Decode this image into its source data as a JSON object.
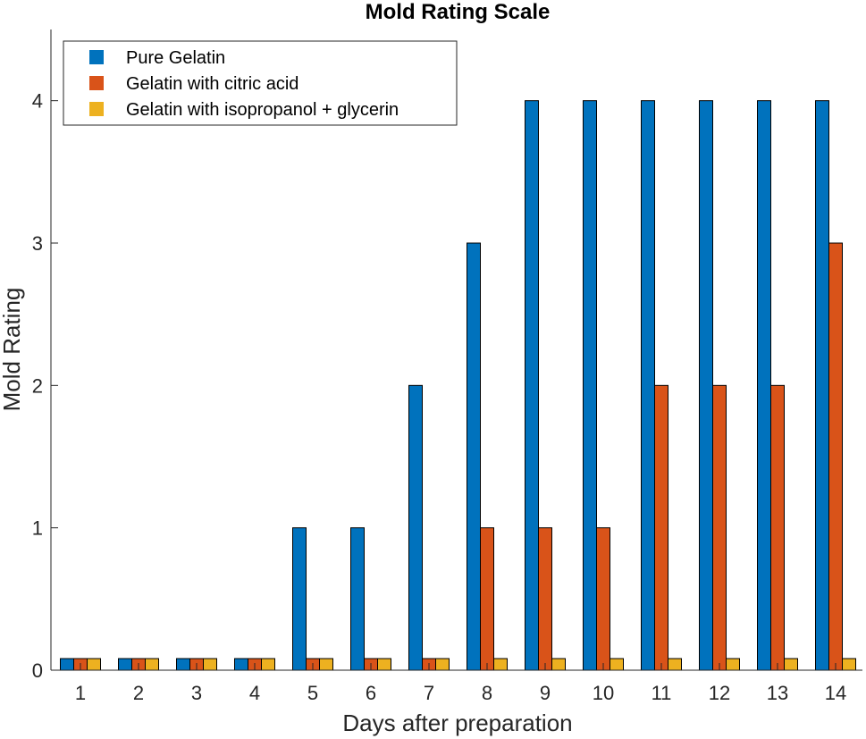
{
  "chart_data": {
    "type": "bar",
    "title": "Mold Rating Scale",
    "xlabel": "Days after preparation",
    "ylabel": "Mold Rating",
    "categories": [
      "1",
      "2",
      "3",
      "4",
      "5",
      "6",
      "7",
      "8",
      "9",
      "10",
      "11",
      "12",
      "13",
      "14"
    ],
    "ylim": [
      0,
      4.5
    ],
    "yticks": [
      0,
      1,
      2,
      3,
      4
    ],
    "grid": false,
    "legend_position": "top-left",
    "series": [
      {
        "name": "Pure Gelatin",
        "color": "#0072bd",
        "values": [
          0,
          0,
          0,
          0,
          1,
          1,
          2,
          3,
          4,
          4,
          4,
          4,
          4,
          4
        ]
      },
      {
        "name": "Gelatin with citric acid",
        "color": "#d95319",
        "values": [
          0,
          0,
          0,
          0,
          0,
          0,
          0,
          1,
          1,
          1,
          2,
          2,
          2,
          3
        ]
      },
      {
        "name": "Gelatin with isopropanol + glycerin",
        "color": "#edb120",
        "values": [
          0,
          0,
          0,
          0,
          0,
          0,
          0,
          0,
          0,
          0,
          0,
          0,
          0,
          0
        ]
      }
    ]
  }
}
